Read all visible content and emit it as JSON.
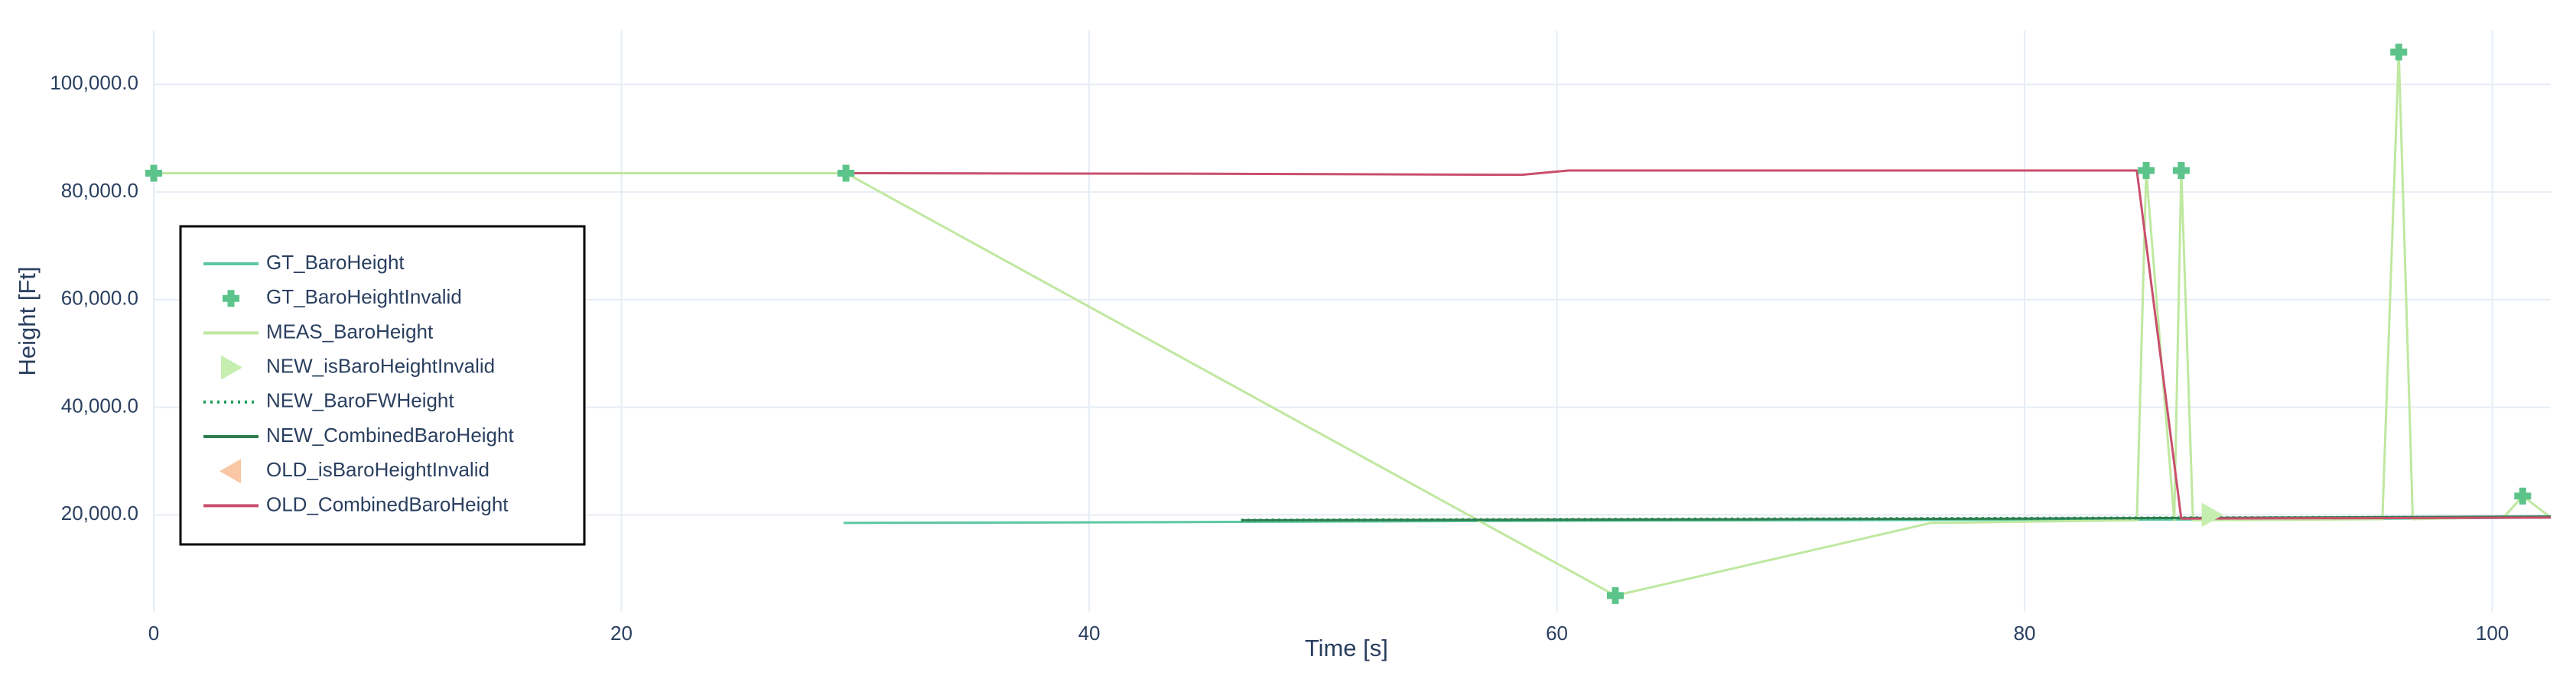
{
  "chart_data": {
    "type": "line",
    "title": "",
    "xlabel": "Time [s]",
    "ylabel": "Height [Ft]",
    "xlim": [
      0,
      102.5
    ],
    "ylim": [
      2000,
      110000
    ],
    "x_ticks": [
      0,
      20,
      40,
      60,
      80,
      100
    ],
    "y_ticks": [
      20000,
      40000,
      60000,
      80000,
      100000
    ],
    "x_tick_labels": [
      "0",
      "20",
      "40",
      "60",
      "80",
      "100"
    ],
    "y_tick_labels": [
      "20,000.0",
      "40,000.0",
      "60,000.0",
      "80,000.0",
      "100,000.0"
    ],
    "grid": true,
    "legend_position": "left",
    "colors": {
      "GT_BaroHeight": "#5cc8a0",
      "GT_BaroHeightInvalid": "#5cc48a",
      "MEAS_BaroHeight": "#bfe8a0",
      "NEW_isBaroHeightInvalid": "#c6eeb0",
      "NEW_BaroFWHeight": "#1f9e5f",
      "NEW_CombinedBaroHeight": "#2e7d4f",
      "OLD_isBaroHeightInvalid": "#f9c7a3",
      "OLD_CombinedBaroHeight": "#c94f6d",
      "grid": "#e6edf5",
      "text": "#2a3f5f"
    },
    "series": [
      {
        "name": "GT_BaroHeight",
        "mode": "lines",
        "x": [
          29.5,
          40,
          50,
          60,
          70,
          80,
          90,
          102.5
        ],
        "y": [
          18500,
          18600,
          18750,
          18900,
          19000,
          19100,
          19150,
          19500
        ]
      },
      {
        "name": "GT_BaroHeightInvalid",
        "mode": "markers",
        "marker": "cross",
        "x": [
          0,
          29.6,
          62.5,
          85.2,
          86.7,
          96,
          101.3
        ],
        "y": [
          83500,
          83500,
          5000,
          84000,
          84000,
          106000,
          23500
        ]
      },
      {
        "name": "MEAS_BaroHeight",
        "mode": "lines",
        "x": [
          0,
          29.6,
          62.5,
          76,
          84.8,
          85.2,
          86.4,
          86.7,
          87.2,
          95.3,
          96,
          96.6,
          100.5,
          101.3,
          102.5
        ],
        "y": [
          83500,
          83500,
          5000,
          18500,
          19000,
          84000,
          19000,
          84000,
          19000,
          19200,
          106000,
          19200,
          19600,
          23500,
          19500
        ]
      },
      {
        "name": "NEW_isBaroHeightInvalid",
        "mode": "markers",
        "marker": "triangle-right",
        "x": [
          88
        ],
        "y": [
          20000
        ]
      },
      {
        "name": "NEW_BaroFWHeight",
        "mode": "lines",
        "dash": "dot",
        "x": [
          46.5,
          102.5
        ],
        "y": [
          19000,
          19600
        ]
      },
      {
        "name": "NEW_CombinedBaroHeight",
        "mode": "lines",
        "x": [
          46.5,
          60,
          80,
          102.5
        ],
        "y": [
          19000,
          19100,
          19300,
          19700
        ]
      },
      {
        "name": "OLD_isBaroHeightInvalid",
        "mode": "markers",
        "marker": "triangle-left",
        "x": [],
        "y": []
      },
      {
        "name": "OLD_CombinedBaroHeight",
        "mode": "lines",
        "x": [
          29.5,
          44,
          58.5,
          60.5,
          84.8,
          86.7,
          102.5
        ],
        "y": [
          83500,
          83400,
          83200,
          84000,
          84000,
          19300,
          19500
        ]
      }
    ]
  }
}
